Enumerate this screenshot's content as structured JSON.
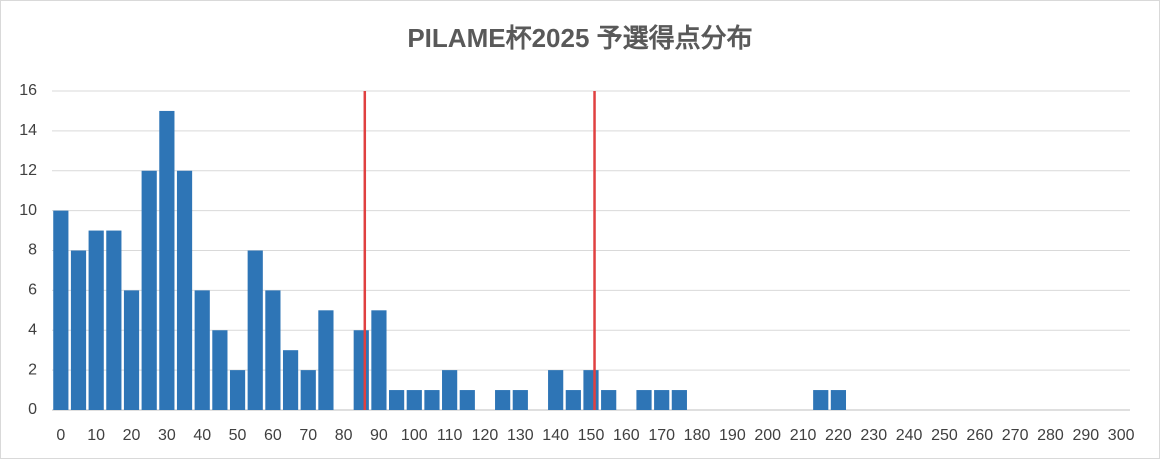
{
  "chart_data": {
    "type": "bar",
    "title": "PILAME杯2025 予選得点分布",
    "categories": [
      "0",
      null,
      "10",
      null,
      "20",
      null,
      "30",
      null,
      "40",
      null,
      "50",
      null,
      "60",
      null,
      "70",
      null,
      "80",
      null,
      "90",
      null,
      "100",
      null,
      "110",
      null,
      "120",
      null,
      "130",
      null,
      "140",
      null,
      "150",
      null,
      "160",
      null,
      "170",
      null,
      "180",
      null,
      "190",
      null,
      "200",
      null,
      "210",
      null,
      "220",
      null,
      "230",
      null,
      "240",
      null,
      "250",
      null,
      "260",
      null,
      "270",
      null,
      "280",
      null,
      "290",
      null,
      "300"
    ],
    "values": [
      10,
      8,
      9,
      9,
      6,
      12,
      15,
      12,
      6,
      4,
      2,
      8,
      6,
      3,
      2,
      5,
      0,
      4,
      5,
      1,
      1,
      1,
      2,
      1,
      0,
      1,
      1,
      0,
      2,
      1,
      2,
      1,
      0,
      1,
      1,
      1,
      0,
      0,
      0,
      0,
      0,
      0,
      0,
      1,
      1,
      0,
      0,
      0,
      0,
      0,
      0,
      0,
      0,
      0,
      0,
      0,
      0,
      0,
      0,
      0,
      0
    ],
    "color": "#2e75b6",
    "ylim": [
      0,
      16
    ],
    "yticks": [
      0,
      2,
      4,
      6,
      8,
      10,
      12,
      14,
      16
    ],
    "grid": true,
    "reference_lines": [
      86,
      151
    ],
    "reference_color": "#e04040"
  }
}
